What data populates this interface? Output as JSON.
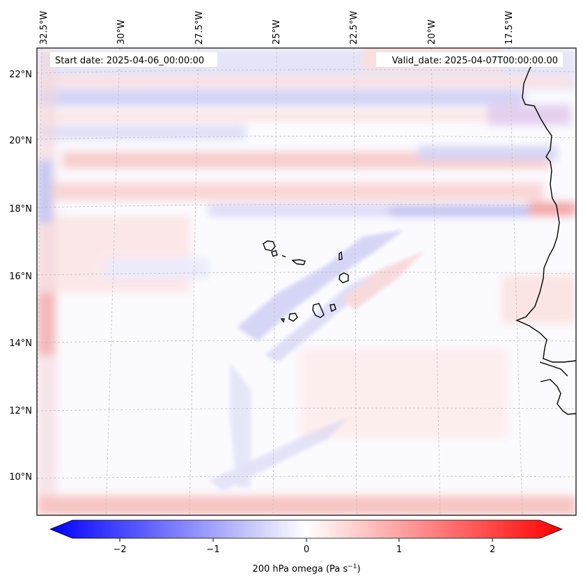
{
  "map": {
    "header": {
      "start_date": "Start date: 2025-04-06_00:00:00",
      "valid_date": "Valid_date: 2025-04-07T00:00:00.00"
    },
    "lon_labels": [
      "32.5°W",
      "30°W",
      "27.5°W",
      "25°W",
      "22.5°W",
      "20°W",
      "17.5°W"
    ],
    "lat_labels": [
      "22°N",
      "20°N",
      "18°N",
      "16°N",
      "14°N",
      "12°N",
      "10°N"
    ],
    "colorbar": {
      "ticks": [
        "−2",
        "−1",
        "0",
        "1",
        "2"
      ],
      "label_main": "200 hPa omega (Pa s",
      "label_sup": "−1",
      "label_end": ")",
      "min_color": "#0000ff",
      "mid_color": "#ffffff",
      "max_color": "#ff0000"
    },
    "colors": {
      "frame": "#000000",
      "coast": "#000000",
      "grid": "#bbbbbb",
      "field_neutral": "#fbfbff"
    }
  }
}
